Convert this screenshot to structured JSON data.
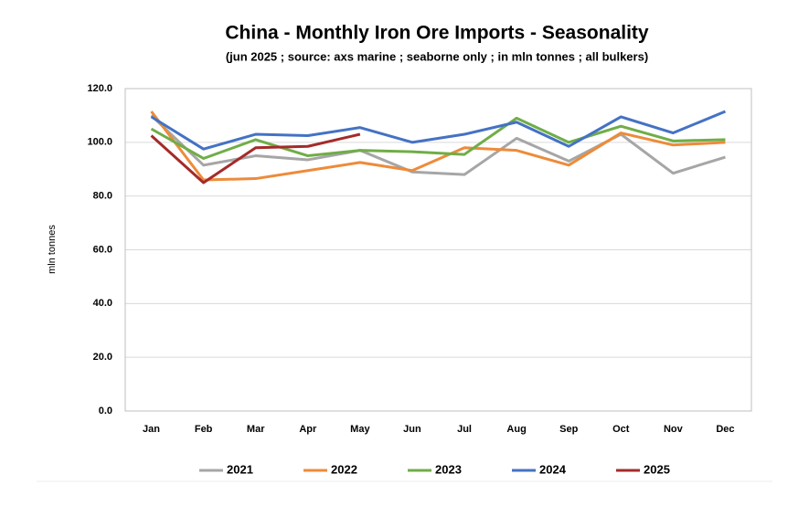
{
  "chart_data": {
    "type": "line",
    "title": "China - Monthly Iron Ore Imports - Seasonality",
    "subtitle": "(jun 2025 ; source: axs marine ; seaborne only ; in mln tonnes ; all bulkers)",
    "y_label": "mln tonnes",
    "categories": [
      "Jan",
      "Feb",
      "Mar",
      "Apr",
      "May",
      "Jun",
      "Jul",
      "Aug",
      "Sep",
      "Oct",
      "Nov",
      "Dec"
    ],
    "series": [
      {
        "name": "2021",
        "color": "#a6a6a6",
        "values": [
          110,
          91.5,
          95,
          93.5,
          97,
          89,
          88,
          101.5,
          93,
          103,
          88.5,
          94.5
        ]
      },
      {
        "name": "2022",
        "color": "#ed8b3a",
        "values": [
          111.5,
          86,
          86.5,
          89.5,
          92.5,
          89.5,
          98,
          97,
          91.5,
          103.5,
          99,
          100
        ]
      },
      {
        "name": "2023",
        "color": "#70ad47",
        "values": [
          105,
          94,
          101,
          95,
          97,
          96.5,
          95.5,
          109,
          100,
          106,
          100.5,
          101
        ]
      },
      {
        "name": "2024",
        "color": "#4472c4",
        "values": [
          109.5,
          97.5,
          103,
          102.5,
          105.5,
          100,
          103,
          107.5,
          98.5,
          109.5,
          103.5,
          111.5
        ]
      },
      {
        "name": "2025",
        "color": "#a52a2a",
        "values": [
          102.5,
          85,
          98,
          98.5,
          103,
          null,
          null,
          null,
          null,
          null,
          null,
          null
        ]
      }
    ],
    "ylim": [
      0,
      120
    ],
    "yticks": [
      {
        "value": 0,
        "label": "0.0"
      },
      {
        "value": 20,
        "label": "20.0"
      },
      {
        "value": 40,
        "label": "40.0"
      },
      {
        "value": 60,
        "label": "60.0"
      },
      {
        "value": 80,
        "label": "80.0"
      },
      {
        "value": 100,
        "label": "100.0"
      },
      {
        "value": 120,
        "label": "120.0"
      }
    ],
    "grid": true,
    "legend": "bottom"
  }
}
